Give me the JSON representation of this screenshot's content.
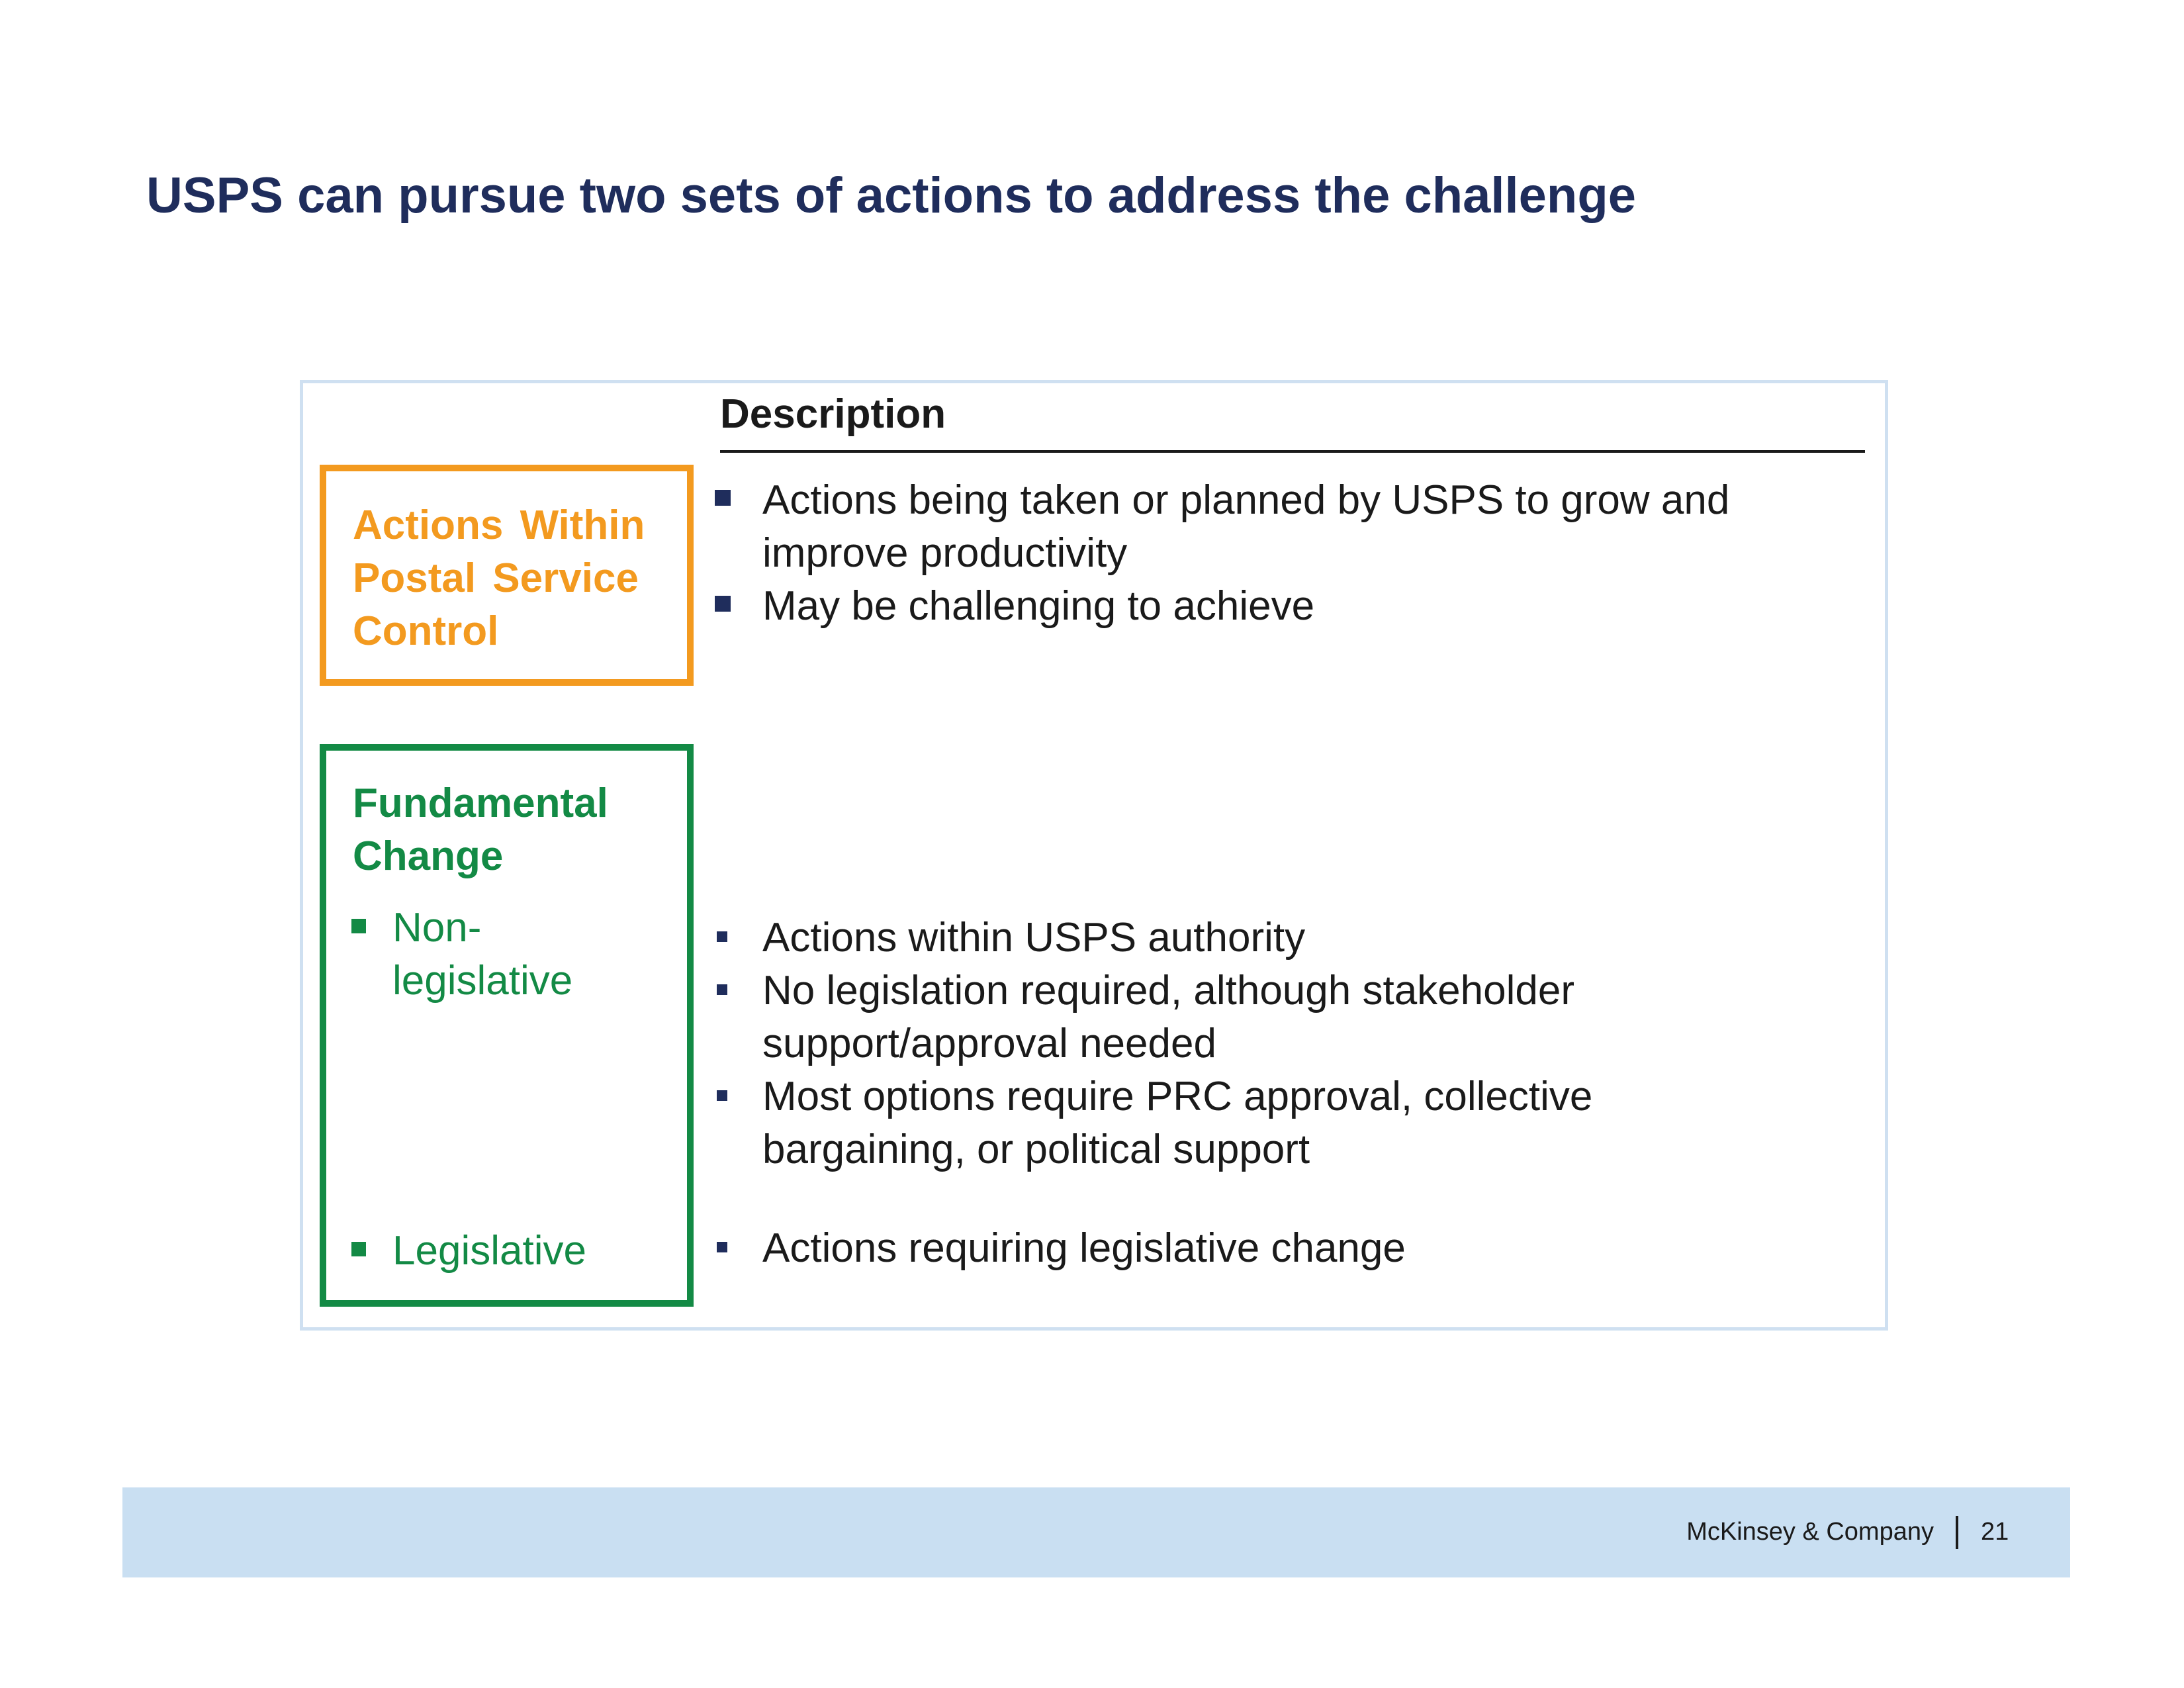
{
  "title": "USPS can pursue two sets of actions to address the challenge",
  "description_header": "Description",
  "categories": {
    "within_control": {
      "title_lines": [
        "Actions Within",
        "Postal Service",
        "Control"
      ],
      "color": "#f39a1f",
      "description": [
        [
          "Actions being taken or planned by USPS to grow and",
          "improve productivity"
        ],
        [
          "May be challenging to achieve"
        ]
      ]
    },
    "fundamental_change": {
      "title_lines": [
        "Fundamental",
        "Change"
      ],
      "color": "#138a45",
      "subcategories": [
        {
          "label_lines": [
            "Non-",
            "legislative"
          ],
          "description": [
            [
              "Actions within USPS authority"
            ],
            [
              "No legislation required, although stakeholder",
              "support/approval needed"
            ],
            [
              "Most options require PRC approval, collective",
              "bargaining, or political support"
            ]
          ]
        },
        {
          "label_lines": [
            "Legislative"
          ],
          "description": [
            [
              "Actions requiring legislative change"
            ]
          ]
        }
      ]
    }
  },
  "footer": {
    "company": "McKinsey & Company",
    "page_number": "21"
  }
}
